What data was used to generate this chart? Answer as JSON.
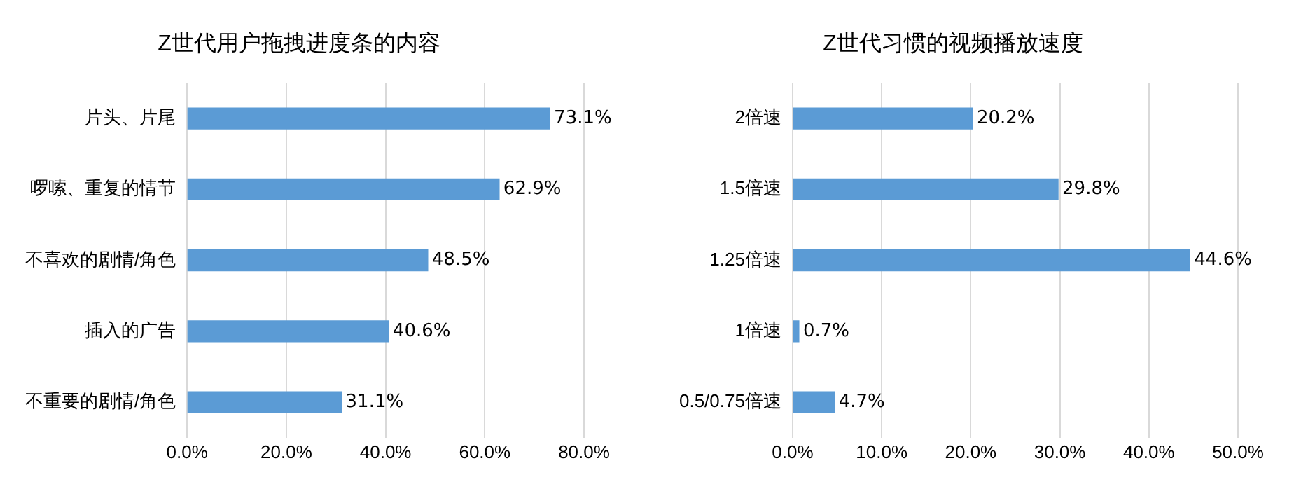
{
  "chart_data": [
    {
      "type": "bar",
      "orientation": "horizontal",
      "title": "Z世代用户拖拽进度条的内容",
      "categories": [
        "片头、片尾",
        "啰嗦、重复的情节",
        "不喜欢的剧情/角色",
        "插入的广告",
        "不重要的剧情/角色"
      ],
      "values": [
        73.1,
        62.9,
        48.5,
        40.6,
        31.1
      ],
      "value_labels": [
        "73.1%",
        "62.9%",
        "48.5%",
        "40.6%",
        "31.1%"
      ],
      "color": "#5b9bd5",
      "xlim": [
        0,
        80
      ],
      "xticks": [
        {
          "value": 0,
          "label": "0.0%"
        },
        {
          "value": 20,
          "label": "20.0%"
        },
        {
          "value": 40,
          "label": "40.0%"
        },
        {
          "value": 60,
          "label": "60.0%"
        },
        {
          "value": 80,
          "label": "80.0%"
        }
      ],
      "grid": "x"
    },
    {
      "type": "bar",
      "orientation": "horizontal",
      "title": "Z世代习惯的视频播放速度",
      "categories": [
        "2倍速",
        "1.5倍速",
        "1.25倍速",
        "1倍速",
        "0.5/0.75倍速"
      ],
      "values": [
        20.2,
        29.8,
        44.6,
        0.7,
        4.7
      ],
      "value_labels": [
        "20.2%",
        "29.8%",
        "44.6%",
        "0.7%",
        "4.7%"
      ],
      "color": "#5b9bd5",
      "xlim": [
        0,
        50
      ],
      "xticks": [
        {
          "value": 0,
          "label": "0.0%"
        },
        {
          "value": 10,
          "label": "10.0%"
        },
        {
          "value": 20,
          "label": "20.0%"
        },
        {
          "value": 30,
          "label": "30.0%"
        },
        {
          "value": 40,
          "label": "40.0%"
        },
        {
          "value": 50,
          "label": "50.0%"
        }
      ],
      "grid": "x"
    }
  ]
}
